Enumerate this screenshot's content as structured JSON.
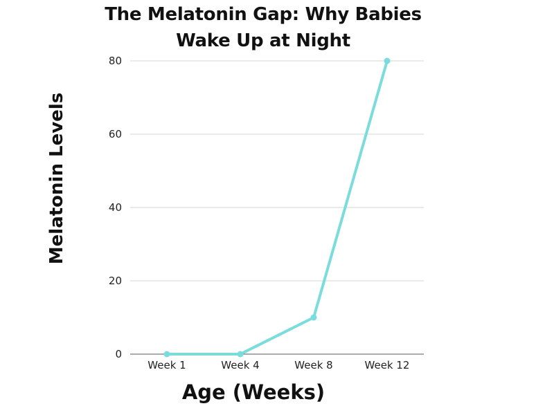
{
  "chart_data": {
    "type": "line",
    "title": "The Melatonin Gap: Why Babies Wake Up at Night",
    "title_lines": [
      "The Melatonin Gap: Why Babies",
      "Wake Up at Night"
    ],
    "xlabel": "Age (Weeks)",
    "ylabel": "Melatonin Levels",
    "categories": [
      "Week 1",
      "Week 4",
      "Week 8",
      "Week 12"
    ],
    "series": [
      {
        "name": "Melatonin Levels",
        "values": [
          0,
          0,
          10,
          80
        ],
        "color": "#7adcdc"
      }
    ],
    "ylim": [
      0,
      80
    ],
    "yticks": [
      "0",
      "20",
      "40",
      "60",
      "80"
    ],
    "grid": true,
    "legend": "none"
  }
}
